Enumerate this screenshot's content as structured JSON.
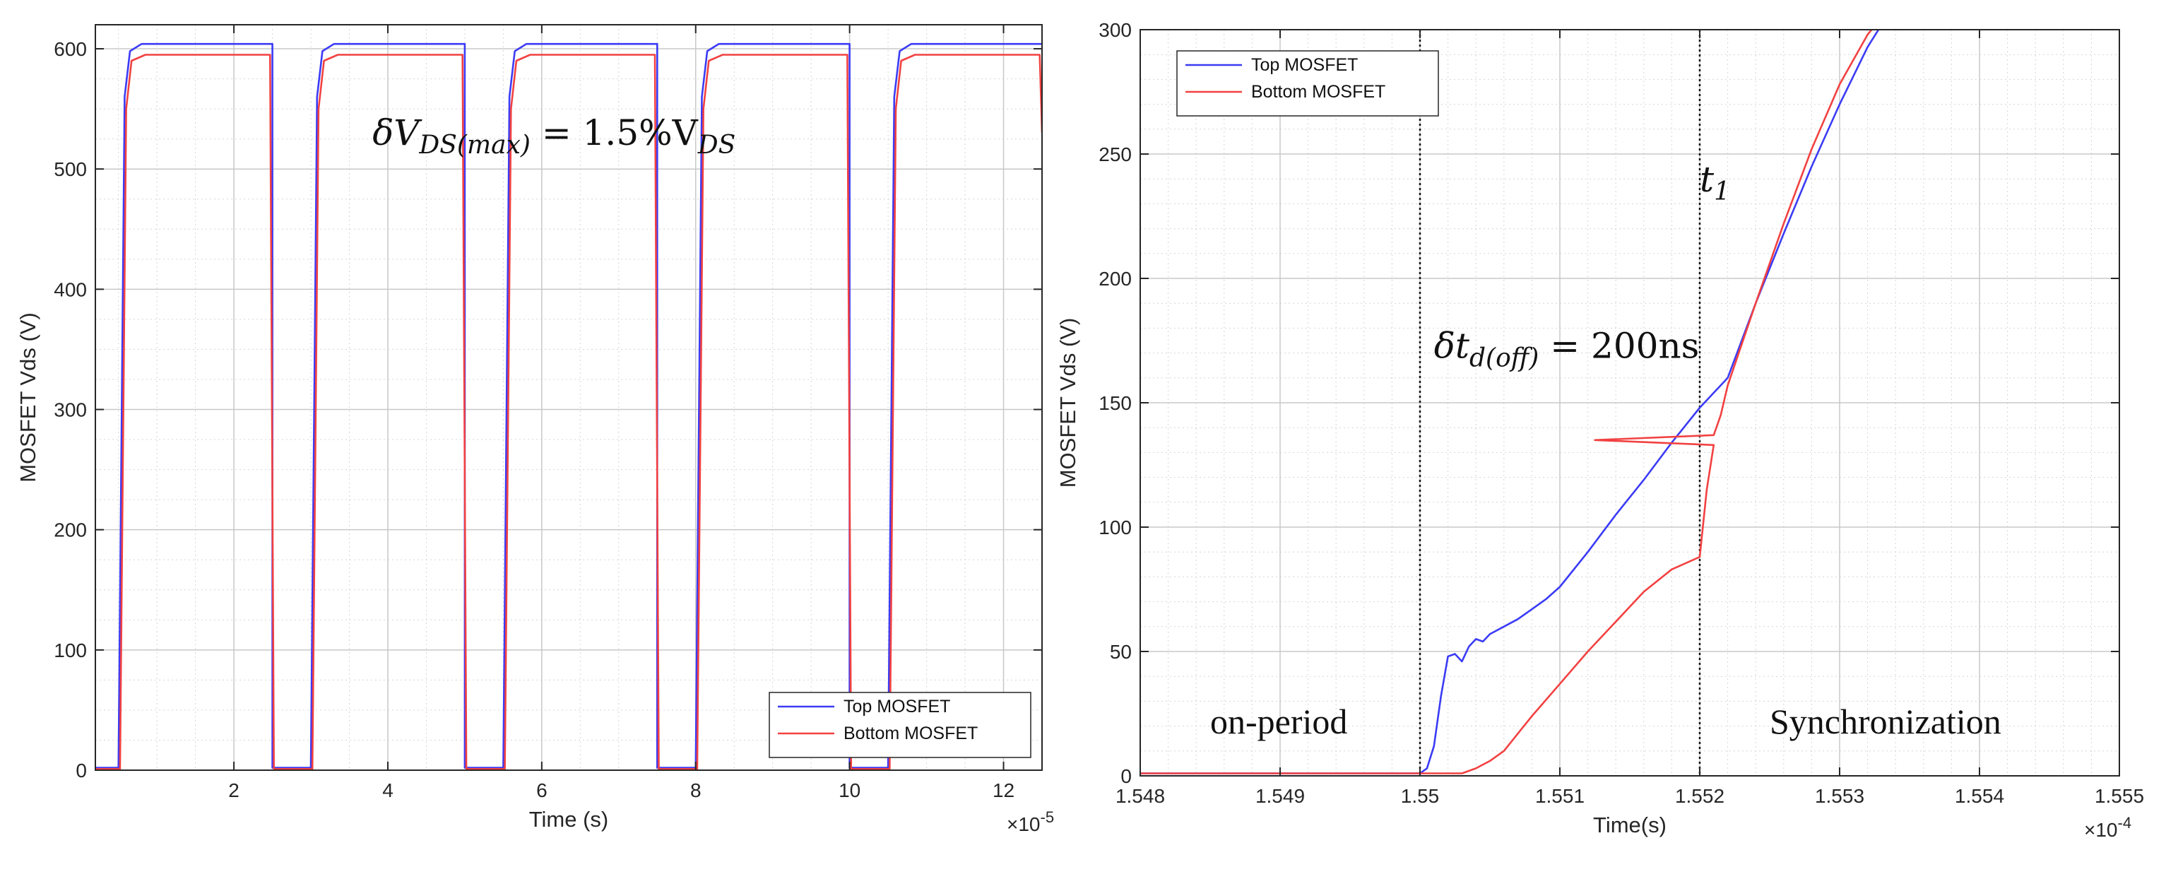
{
  "chart_data": [
    {
      "type": "line",
      "title": "",
      "xlabel": "Time (s)",
      "ylabel": "MOSFET Vds (V)",
      "xlim": [
        0.2,
        12.5
      ],
      "ylim": [
        0,
        620
      ],
      "x_exponent": "×10",
      "x_exponent_power": "-5",
      "xticks": [
        2,
        4,
        6,
        8,
        10,
        12
      ],
      "xtick_labels": [
        "2",
        "4",
        "6",
        "8",
        "10",
        "12"
      ],
      "yticks": [
        0,
        100,
        200,
        300,
        400,
        500,
        600
      ],
      "ytick_labels": [
        "0",
        "100",
        "200",
        "300",
        "400",
        "500",
        "600"
      ],
      "grid": true,
      "legend_position": "bottom-right",
      "series": [
        {
          "name": "Top MOSFET",
          "color": "#3b3bf5",
          "x": [
            0.2,
            0.5,
            0.58,
            0.65,
            0.8,
            2.5,
            2.5,
            3.0,
            3.08,
            3.15,
            3.3,
            5.0,
            5.0,
            5.5,
            5.58,
            5.65,
            5.8,
            7.5,
            7.5,
            8.0,
            8.08,
            8.15,
            8.3,
            10.0,
            10.0,
            10.5,
            10.58,
            10.65,
            10.8,
            12.5
          ],
          "y": [
            2,
            2,
            560,
            598,
            604,
            604,
            2,
            2,
            560,
            598,
            604,
            604,
            2,
            2,
            560,
            598,
            604,
            604,
            2,
            2,
            560,
            598,
            604,
            604,
            2,
            2,
            560,
            598,
            604,
            604
          ]
        },
        {
          "name": "Bottom MOSFET",
          "color": "#f24141",
          "x": [
            0.2,
            0.52,
            0.6,
            0.67,
            0.85,
            2.47,
            2.52,
            3.02,
            3.1,
            3.17,
            3.35,
            4.97,
            5.02,
            5.52,
            5.6,
            5.67,
            5.85,
            7.47,
            7.52,
            8.02,
            8.1,
            8.17,
            8.35,
            9.97,
            10.02,
            10.52,
            10.6,
            10.67,
            10.85,
            12.47,
            12.5
          ],
          "y": [
            1,
            1,
            550,
            590,
            595,
            595,
            1,
            1,
            550,
            590,
            595,
            595,
            1,
            1,
            550,
            590,
            595,
            595,
            1,
            1,
            550,
            590,
            595,
            595,
            1,
            1,
            550,
            590,
            595,
            595,
            530
          ]
        }
      ],
      "annotations": [
        {
          "text": "δV",
          "sub": "DS(max)",
          "mid": " = 1.5%V",
          "sub2": "DS",
          "at": [
            3.8,
            520
          ]
        }
      ]
    },
    {
      "type": "line",
      "title": "",
      "xlabel": "Time(s)",
      "ylabel": "MOSFET Vds (V)",
      "xlim": [
        1.548,
        1.555
      ],
      "ylim": [
        0,
        300
      ],
      "x_exponent": "×10",
      "x_exponent_power": "-4",
      "xticks": [
        1.548,
        1.549,
        1.55,
        1.551,
        1.552,
        1.553,
        1.554,
        1.555
      ],
      "xtick_labels": [
        "1.548",
        "1.549",
        "1.55",
        "1.551",
        "1.552",
        "1.553",
        "1.554",
        "1.555"
      ],
      "yticks": [
        0,
        50,
        100,
        150,
        200,
        250,
        300
      ],
      "ytick_labels": [
        "0",
        "50",
        "100",
        "150",
        "200",
        "250",
        "300"
      ],
      "grid": true,
      "legend_position": "top-left",
      "vlines": [
        1.55,
        1.552
      ],
      "series": [
        {
          "name": "Top MOSFET",
          "color": "#3b3bf5",
          "x": [
            1.548,
            1.55,
            1.55005,
            1.5501,
            1.55015,
            1.5502,
            1.55025,
            1.5503,
            1.55035,
            1.5504,
            1.55045,
            1.5505,
            1.5506,
            1.5507,
            1.5508,
            1.5509,
            1.551,
            1.5512,
            1.5514,
            1.5516,
            1.5518,
            1.552,
            1.55205,
            1.5521,
            1.55215,
            1.5522,
            1.5524,
            1.5526,
            1.5528,
            1.553,
            1.5532,
            1.5533
          ],
          "y": [
            1,
            1,
            3,
            12,
            32,
            48,
            49,
            46,
            52,
            55,
            54,
            57,
            60,
            63,
            67,
            71,
            76,
            90,
            105,
            119,
            134,
            148,
            151,
            154,
            157,
            160,
            190,
            218,
            245,
            270,
            293,
            302
          ]
        },
        {
          "name": "Bottom MOSFET",
          "color": "#f24141",
          "x": [
            1.548,
            1.5502,
            1.5503,
            1.5504,
            1.5505,
            1.5506,
            1.5508,
            1.551,
            1.5512,
            1.5514,
            1.5516,
            1.5518,
            1.552,
            1.55205,
            1.5521,
            1.55125,
            1.5521,
            1.55215,
            1.5522,
            1.5524,
            1.5526,
            1.5528,
            1.553,
            1.5532,
            1.5533
          ],
          "y": [
            1,
            1,
            1,
            3,
            6,
            10,
            24,
            37,
            50,
            62,
            74,
            83,
            88,
            115,
            133,
            135,
            137,
            145,
            157,
            190,
            222,
            252,
            278,
            298,
            305
          ]
        }
      ],
      "annotations": [
        {
          "text": "t",
          "sub": "1",
          "at": [
            1.552,
            235
          ]
        },
        {
          "text": "δt",
          "sub": "d(off)",
          "mid": " = 200ns",
          "color": "#f11",
          "at": [
            1.5501,
            168
          ]
        },
        {
          "text": "on-period",
          "at": [
            1.5485,
            17
          ]
        },
        {
          "text": "Synchronization",
          "at": [
            1.5525,
            17
          ]
        }
      ]
    }
  ]
}
